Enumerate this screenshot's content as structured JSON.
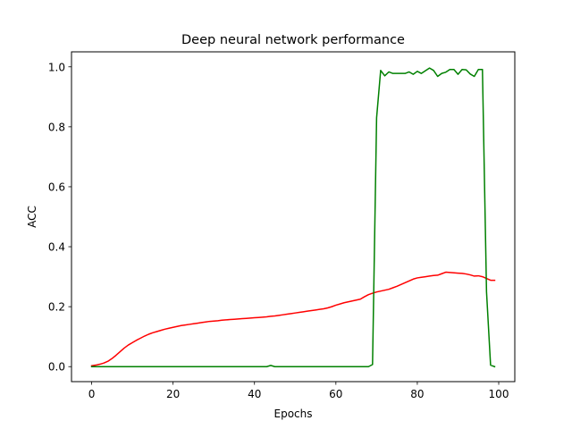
{
  "chart_data": {
    "type": "line",
    "title": "Deep neural network performance",
    "xlabel": "Epochs",
    "ylabel": "ACC",
    "xlim": [
      -4.95,
      103.95
    ],
    "ylim": [
      -0.05,
      1.05
    ],
    "xticks": [
      0,
      20,
      40,
      60,
      80,
      100
    ],
    "yticks": [
      0.0,
      0.2,
      0.4,
      0.6,
      0.8,
      1.0
    ],
    "xtick_labels": [
      "0",
      "20",
      "40",
      "60",
      "80",
      "100"
    ],
    "ytick_labels": [
      "0.0",
      "0.2",
      "0.4",
      "0.6",
      "0.8",
      "1.0"
    ],
    "grid": false,
    "legend": "none",
    "x": [
      0,
      1,
      2,
      3,
      4,
      5,
      6,
      7,
      8,
      9,
      10,
      11,
      12,
      13,
      14,
      15,
      16,
      17,
      18,
      19,
      20,
      21,
      22,
      23,
      24,
      25,
      26,
      27,
      28,
      29,
      30,
      31,
      32,
      33,
      34,
      35,
      36,
      37,
      38,
      39,
      40,
      41,
      42,
      43,
      44,
      45,
      46,
      47,
      48,
      49,
      50,
      51,
      52,
      53,
      54,
      55,
      56,
      57,
      58,
      59,
      60,
      61,
      62,
      63,
      64,
      65,
      66,
      67,
      68,
      69,
      70,
      71,
      72,
      73,
      74,
      75,
      76,
      77,
      78,
      79,
      80,
      81,
      82,
      83,
      84,
      85,
      86,
      87,
      88,
      89,
      90,
      91,
      92,
      93,
      94,
      95,
      96,
      97,
      98,
      99
    ],
    "series": [
      {
        "color": "#ff0000",
        "values": [
          0.003,
          0.005,
          0.008,
          0.012,
          0.018,
          0.027,
          0.038,
          0.05,
          0.062,
          0.072,
          0.08,
          0.088,
          0.095,
          0.102,
          0.108,
          0.113,
          0.117,
          0.121,
          0.125,
          0.128,
          0.131,
          0.134,
          0.137,
          0.139,
          0.141,
          0.143,
          0.145,
          0.147,
          0.149,
          0.151,
          0.152,
          0.153,
          0.155,
          0.156,
          0.157,
          0.158,
          0.159,
          0.16,
          0.161,
          0.162,
          0.163,
          0.164,
          0.165,
          0.166,
          0.168,
          0.169,
          0.171,
          0.173,
          0.175,
          0.177,
          0.179,
          0.181,
          0.183,
          0.185,
          0.187,
          0.189,
          0.191,
          0.193,
          0.196,
          0.2,
          0.205,
          0.209,
          0.213,
          0.216,
          0.219,
          0.222,
          0.225,
          0.233,
          0.24,
          0.245,
          0.249,
          0.252,
          0.255,
          0.258,
          0.263,
          0.268,
          0.274,
          0.28,
          0.286,
          0.292,
          0.296,
          0.298,
          0.3,
          0.302,
          0.304,
          0.305,
          0.31,
          0.315,
          0.314,
          0.313,
          0.312,
          0.311,
          0.309,
          0.306,
          0.302,
          0.303,
          0.3,
          0.294,
          0.288,
          0.288
        ]
      },
      {
        "color": "#008000",
        "values": [
          0,
          0,
          0,
          0,
          0,
          0,
          0,
          0,
          0,
          0,
          0,
          0,
          0,
          0,
          0,
          0,
          0,
          0,
          0,
          0,
          0,
          0,
          0,
          0,
          0,
          0,
          0,
          0,
          0,
          0,
          0,
          0,
          0,
          0,
          0,
          0,
          0,
          0,
          0,
          0,
          0,
          0,
          0,
          0,
          0.004,
          0,
          0,
          0,
          0,
          0,
          0,
          0,
          0,
          0,
          0,
          0,
          0,
          0,
          0,
          0,
          0,
          0,
          0,
          0,
          0,
          0,
          0,
          0,
          0,
          0.007,
          0.83,
          0.988,
          0.97,
          0.983,
          0.978,
          0.978,
          0.978,
          0.978,
          0.983,
          0.975,
          0.985,
          0.978,
          0.987,
          0.996,
          0.988,
          0.968,
          0.978,
          0.982,
          0.991,
          0.991,
          0.975,
          0.991,
          0.99,
          0.976,
          0.968,
          0.991,
          0.991,
          0.25,
          0.005,
          0
        ]
      }
    ]
  }
}
